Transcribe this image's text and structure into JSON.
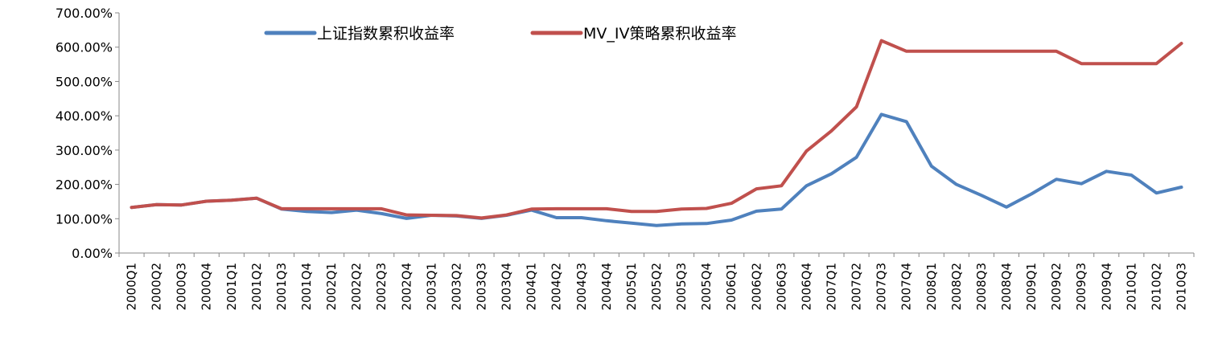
{
  "chart_data": {
    "type": "line",
    "title": "",
    "xlabel": "",
    "ylabel": "",
    "ylim": [
      0,
      700
    ],
    "y_tick_values": [
      0,
      100,
      200,
      300,
      400,
      500,
      600,
      700
    ],
    "y_tick_labels": [
      "0.00%",
      "100.00%",
      "200.00%",
      "300.00%",
      "400.00%",
      "500.00%",
      "600.00%",
      "700.00%"
    ],
    "grid": false,
    "legend_position": "top",
    "categories": [
      "2000Q1",
      "2000Q2",
      "2000Q3",
      "2000Q4",
      "2001Q1",
      "2001Q2",
      "2001Q3",
      "2001Q4",
      "2002Q1",
      "2002Q2",
      "2002Q3",
      "2002Q4",
      "2003Q1",
      "2003Q2",
      "2003Q3",
      "2003Q4",
      "2004Q1",
      "2004Q2",
      "2004Q3",
      "2004Q4",
      "2005Q1",
      "2005Q2",
      "2005Q3",
      "2005Q4",
      "2006Q1",
      "2006Q2",
      "2006Q3",
      "2006Q4",
      "2007Q1",
      "2007Q2",
      "2007Q3",
      "2007Q4",
      "2008Q1",
      "2008Q2",
      "2008Q3",
      "2008Q4",
      "2009Q1",
      "2009Q2",
      "2009Q3",
      "2009Q4",
      "2010Q1",
      "2010Q2",
      "2010Q3"
    ],
    "series": [
      {
        "name": "上证指数累积收益率",
        "color": "#4F81BD",
        "values": [
          133,
          141,
          140,
          151,
          154,
          160,
          128,
          121,
          118,
          125,
          115,
          101,
          110,
          108,
          101,
          110,
          125,
          103,
          103,
          94,
          87,
          80,
          85,
          86,
          96,
          122,
          128,
          196,
          231,
          279,
          404,
          383,
          253,
          200,
          168,
          134,
          172,
          215,
          202,
          238,
          227,
          175,
          192
        ]
      },
      {
        "name": "MV_IV策略累积收益率",
        "color": "#C0504D",
        "values": [
          133,
          141,
          140,
          151,
          154,
          160,
          129,
          129,
          129,
          129,
          129,
          111,
          110,
          109,
          102,
          111,
          128,
          129,
          129,
          129,
          121,
          121,
          128,
          130,
          145,
          187,
          196,
          297,
          356,
          426,
          619,
          588,
          588,
          588,
          588,
          588,
          588,
          588,
          552,
          552,
          552,
          552,
          611
        ]
      }
    ]
  }
}
